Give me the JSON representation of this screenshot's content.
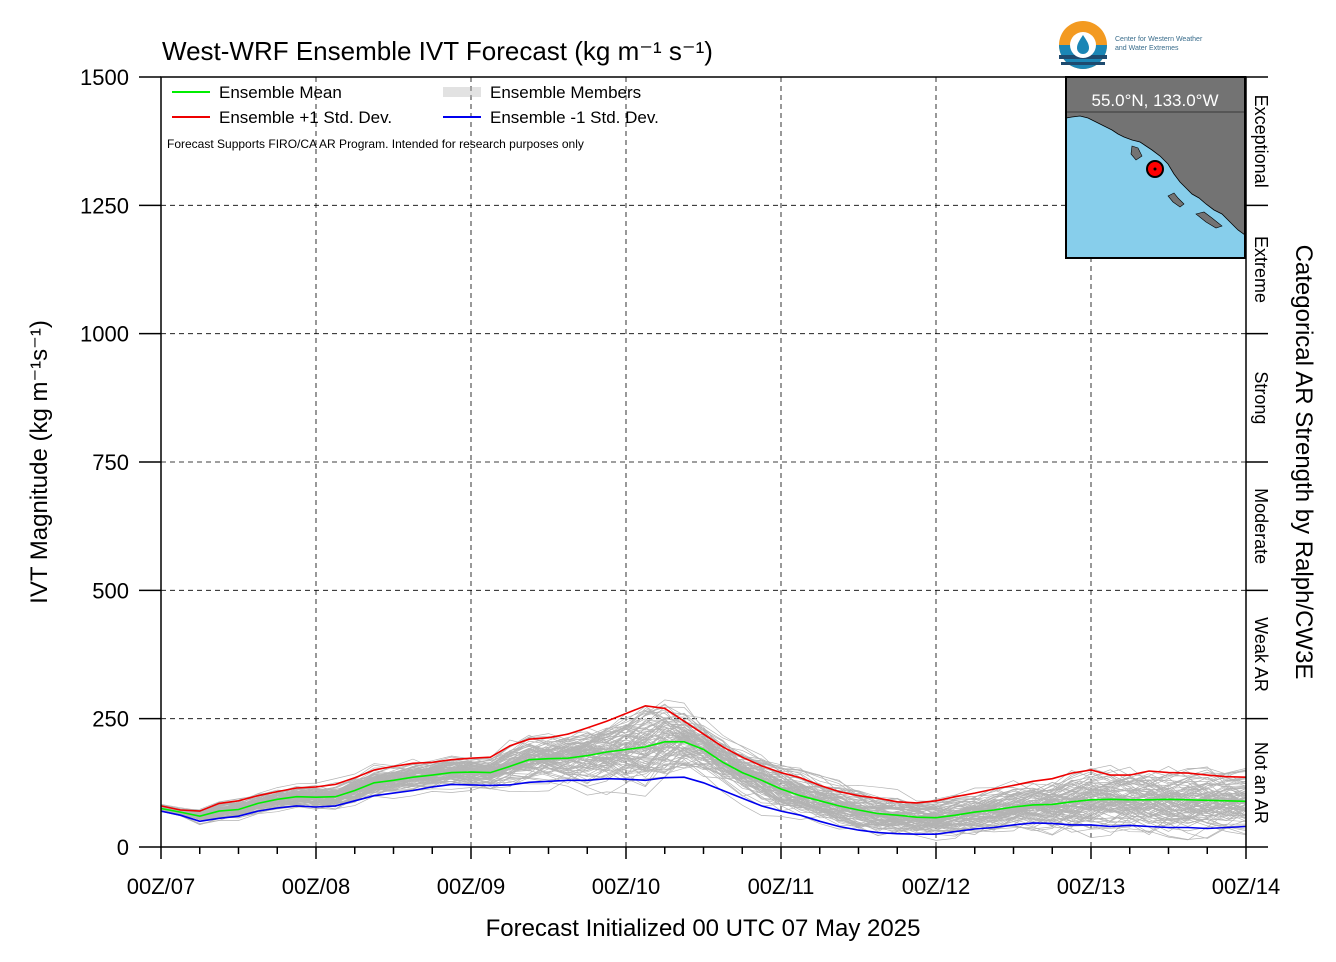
{
  "logo": {
    "line1": "Center for Western Weather",
    "line2": "and Water Extremes",
    "colors": {
      "orange": "#f39a21",
      "blue": "#1b86b5",
      "navy": "#1e4a6e"
    }
  },
  "inset_map": {
    "location_label": "55.0°N, 133.0°W",
    "ocean_color": "#87ceeb",
    "land_color": "#737373",
    "marker_color": "#ff0000"
  },
  "colors": {
    "mean": "#00ee00",
    "plus_sd": "#ee0000",
    "minus_sd": "#0000ee",
    "members": "#b3b3b3"
  },
  "chart_data": {
    "type": "line",
    "title": "West-WRF Ensemble IVT Forecast (kg m⁻¹ s⁻¹)",
    "xlabel": "Forecast Initialized 00 UTC 07 May 2025",
    "ylabel": "IVT Magnitude (kg m⁻¹s⁻¹)",
    "right_label": "Categorical AR Strength by Ralph/CW3E",
    "note": "Forecast Supports FIRO/CA AR Program. Intended for research purposes only",
    "x_unit": "forecast hour",
    "xlim": [
      0,
      168
    ],
    "ylim": [
      0,
      1500
    ],
    "x_ticks": [
      0,
      24,
      48,
      72,
      96,
      120,
      144,
      168
    ],
    "x_tick_labels": [
      "00Z/07",
      "00Z/08",
      "00Z/09",
      "00Z/10",
      "00Z/11",
      "00Z/12",
      "00Z/13",
      "00Z/14"
    ],
    "y_ticks": [
      0,
      250,
      500,
      750,
      1000,
      1250,
      1500
    ],
    "y_tick_labels": [
      "0",
      "250",
      "500",
      "750",
      "1000",
      "1250",
      "1500"
    ],
    "grid": true,
    "legend_position": "top-left",
    "legend": [
      "Ensemble Mean",
      "Ensemble +1 Std. Dev.",
      "Ensemble Members",
      "Ensemble -1 Std. Dev."
    ],
    "categories": [
      {
        "label": "Not an AR",
        "from": 0,
        "to": 250
      },
      {
        "label": "Weak AR",
        "from": 250,
        "to": 500
      },
      {
        "label": "Moderate",
        "from": 500,
        "to": 750
      },
      {
        "label": "Strong",
        "from": 750,
        "to": 1000
      },
      {
        "label": "Extreme",
        "from": 1000,
        "to": 1250
      },
      {
        "label": "Exceptional",
        "from": 1250,
        "to": 1500
      }
    ],
    "x": [
      0,
      3,
      6,
      9,
      12,
      15,
      18,
      21,
      24,
      27,
      30,
      33,
      36,
      39,
      42,
      45,
      48,
      51,
      54,
      57,
      60,
      63,
      66,
      69,
      72,
      75,
      78,
      81,
      84,
      87,
      90,
      93,
      96,
      99,
      102,
      105,
      108,
      111,
      114,
      117,
      120,
      123,
      126,
      129,
      132,
      135,
      138,
      141,
      144,
      147,
      150,
      153,
      156,
      159,
      162,
      165,
      168
    ],
    "series": [
      {
        "name": "Ensemble Mean",
        "color_key": "mean",
        "values": [
          75,
          68,
          60,
          70,
          73,
          85,
          93,
          98,
          97,
          98,
          110,
          125,
          130,
          136,
          140,
          145,
          146,
          145,
          157,
          170,
          172,
          173,
          178,
          185,
          190,
          195,
          205,
          205,
          190,
          165,
          145,
          130,
          113,
          100,
          90,
          80,
          72,
          65,
          62,
          58,
          57,
          62,
          68,
          72,
          78,
          82,
          83,
          88,
          92,
          93,
          92,
          92,
          93,
          92,
          91,
          90,
          89
        ]
      },
      {
        "name": "Ensemble +1 Std. Dev.",
        "color_key": "plus_sd",
        "values": [
          80,
          72,
          70,
          85,
          90,
          100,
          108,
          115,
          117,
          122,
          135,
          150,
          157,
          163,
          165,
          170,
          173,
          175,
          197,
          210,
          213,
          220,
          232,
          245,
          260,
          275,
          270,
          245,
          220,
          195,
          175,
          158,
          145,
          135,
          120,
          108,
          100,
          95,
          88,
          86,
          90,
          98,
          105,
          113,
          120,
          128,
          133,
          144,
          150,
          140,
          140,
          148,
          145,
          144,
          140,
          137,
          136
        ]
      },
      {
        "name": "Ensemble -1 Std. Dev.",
        "color_key": "minus_sd",
        "values": [
          70,
          62,
          50,
          56,
          60,
          70,
          76,
          80,
          78,
          80,
          90,
          100,
          105,
          110,
          117,
          122,
          121,
          120,
          121,
          126,
          128,
          130,
          130,
          133,
          132,
          130,
          135,
          136,
          125,
          110,
          95,
          80,
          70,
          62,
          50,
          40,
          33,
          28,
          26,
          25,
          25,
          30,
          35,
          38,
          43,
          47,
          46,
          43,
          43,
          40,
          42,
          40,
          38,
          38,
          36,
          38,
          40
        ]
      }
    ],
    "members_count": 100
  }
}
